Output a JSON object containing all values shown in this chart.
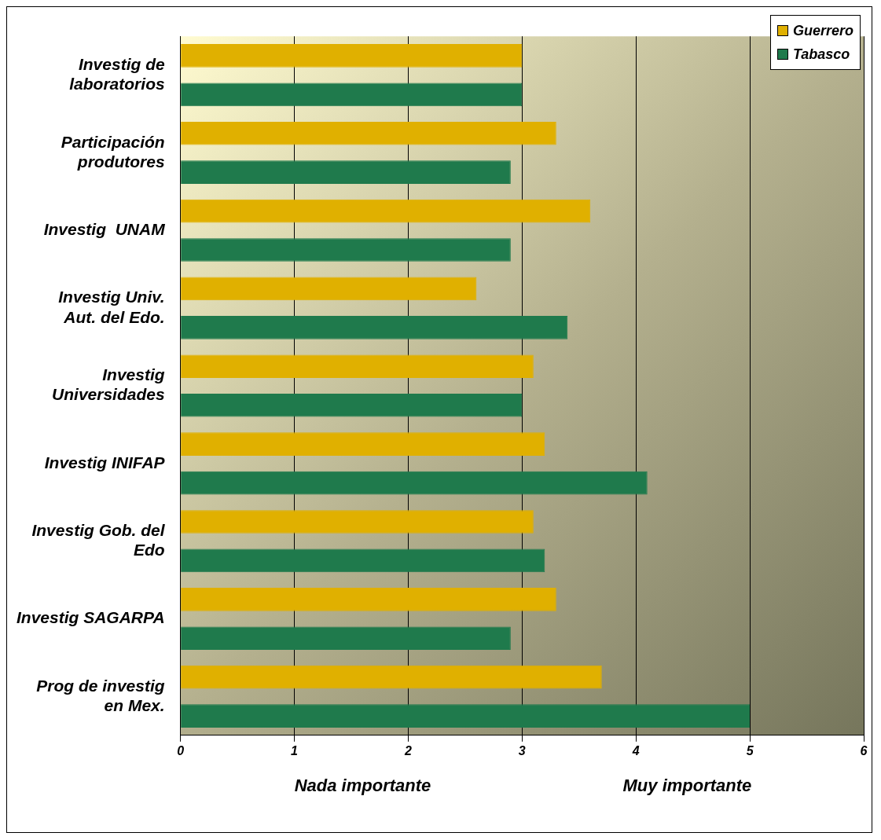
{
  "chart_data": {
    "type": "bar",
    "orientation": "horizontal",
    "categories": [
      "Investig de laboratorios",
      "Participación produtores",
      "Investig  UNAM",
      "Investig Univ. Aut. del Edo.",
      "Investig Universidades",
      "Investig INIFAP",
      "Investig Gob. del Edo",
      "Investig SAGARPA",
      "Prog de investig en Mex."
    ],
    "series": [
      {
        "name": "Guerrero",
        "color": "#e0b000",
        "values": [
          3.0,
          3.3,
          3.6,
          2.6,
          3.1,
          3.2,
          3.1,
          3.3,
          3.7
        ]
      },
      {
        "name": "Tabasco",
        "color": "#1f7a4c",
        "values": [
          3.0,
          2.9,
          2.9,
          3.4,
          3.0,
          4.1,
          3.2,
          2.9,
          5.0
        ]
      }
    ],
    "xlim": [
      0,
      6
    ],
    "xticks": [
      0,
      1,
      2,
      3,
      4,
      5,
      6
    ],
    "grid": "x",
    "legend": "top right",
    "annotations": [
      "Nada importante",
      "Muy importante"
    ]
  }
}
